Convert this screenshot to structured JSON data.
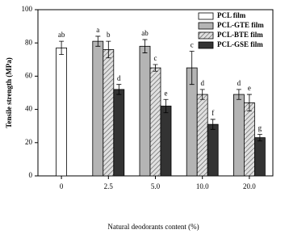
{
  "chart_data": {
    "type": "bar",
    "x_label": "Natural deodorants content (%)",
    "y_label": "Tensile strength (MPa)",
    "categories": [
      "0",
      "2.5",
      "5.0",
      "10.0",
      "20.0"
    ],
    "ylim": [
      0,
      100
    ],
    "yticks": [
      0,
      20,
      40,
      60,
      80,
      100
    ],
    "legend": "upper right",
    "series": [
      {
        "name": "PCL film",
        "color": "#ffffff",
        "values": [
          77,
          null,
          null,
          null,
          null
        ],
        "errors": [
          4,
          null,
          null,
          null,
          null
        ],
        "letters": [
          "ab",
          null,
          null,
          null,
          null
        ]
      },
      {
        "name": "PCL-GTE film",
        "color": "#b4b4b4",
        "values": [
          null,
          81,
          78,
          65,
          49
        ],
        "errors": [
          null,
          3,
          4,
          10,
          3
        ],
        "letters": [
          null,
          "a",
          "ab",
          "c",
          "d"
        ]
      },
      {
        "name": "PCL-BTE film",
        "color": "hatch",
        "values": [
          null,
          76,
          65,
          49,
          44
        ],
        "errors": [
          null,
          5,
          2,
          3,
          5
        ],
        "letters": [
          null,
          "b",
          "c",
          "d",
          "e"
        ]
      },
      {
        "name": "PCL-GSE film",
        "color": "#333333",
        "values": [
          null,
          52,
          42,
          31,
          23
        ],
        "errors": [
          null,
          3,
          4,
          3,
          2
        ],
        "letters": [
          null,
          "d",
          "e",
          "f",
          "g"
        ]
      }
    ]
  }
}
